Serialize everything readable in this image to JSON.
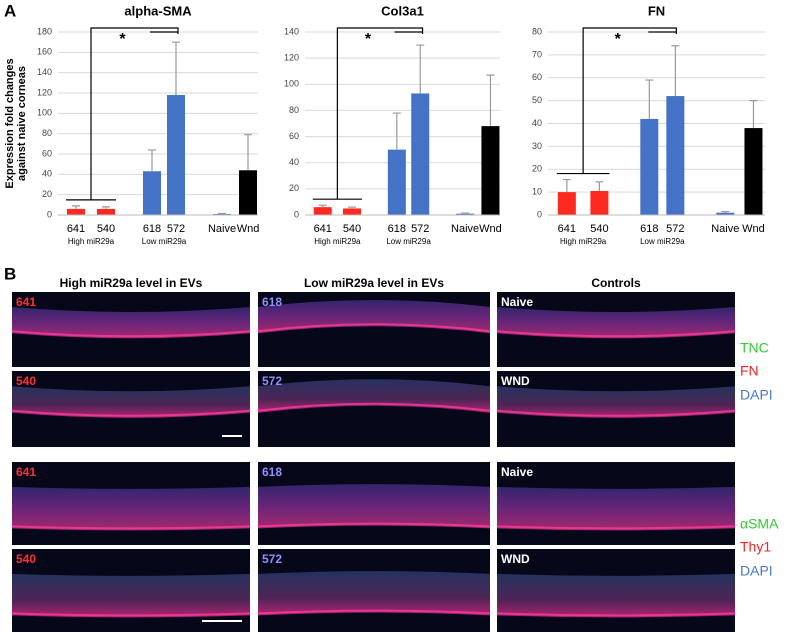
{
  "panel_labels": [
    "A",
    "B"
  ],
  "chart_data": [
    {
      "type": "bar",
      "title": "alpha-SMA",
      "ylabel": [
        "Expression fold changes",
        "against naive corneas"
      ],
      "categories": [
        "641",
        "540",
        "618",
        "572",
        "Naive",
        "Wnd"
      ],
      "values": [
        6,
        6,
        43,
        118,
        1,
        44
      ],
      "errors": [
        3,
        2,
        21,
        52,
        0.5,
        35
      ],
      "colors": [
        "#ff2a1f",
        "#ff2a1f",
        "#4472c4",
        "#4472c4",
        "#4472c4",
        "#000000"
      ],
      "group_labels": [
        "High miR29a",
        "Low miR29a"
      ],
      "annotation": "*",
      "ylim": [
        0,
        180
      ],
      "yticks": [
        0,
        20,
        40,
        60,
        80,
        100,
        120,
        140,
        160,
        180
      ],
      "grid": true
    },
    {
      "type": "bar",
      "title": "Col3a1",
      "categories": [
        "641",
        "540",
        "618",
        "572",
        "Naive",
        "Wnd"
      ],
      "values": [
        6,
        5,
        50,
        93,
        1,
        68
      ],
      "errors": [
        1.5,
        1,
        28,
        37,
        0.5,
        39
      ],
      "colors": [
        "#ff2a1f",
        "#ff2a1f",
        "#4472c4",
        "#4472c4",
        "#4472c4",
        "#000000"
      ],
      "group_labels": [
        "High miR29a",
        "Low miR29a"
      ],
      "annotation": "*",
      "ylim": [
        0,
        140
      ],
      "yticks": [
        0,
        20,
        40,
        60,
        80,
        100,
        120,
        140
      ],
      "grid": true
    },
    {
      "type": "bar",
      "title": "FN",
      "categories": [
        "641",
        "540",
        "618",
        "572",
        "Naive",
        "Wnd"
      ],
      "values": [
        10,
        10.5,
        42,
        52,
        1,
        38
      ],
      "errors": [
        5.5,
        4,
        17,
        22,
        0.5,
        12
      ],
      "colors": [
        "#ff2a1f",
        "#ff2a1f",
        "#4472c4",
        "#4472c4",
        "#4472c4",
        "#000000"
      ],
      "group_labels": [
        "High miR29a",
        "Low miR29a"
      ],
      "annotation": "*",
      "ylim": [
        0,
        80
      ],
      "yticks": [
        0,
        10,
        20,
        30,
        40,
        50,
        60,
        70,
        80
      ],
      "grid": true
    }
  ],
  "panel_b": {
    "columns": [
      "High miR29a level in EVs",
      "Low miR29a level in EVs",
      "Controls"
    ],
    "rows": [
      [
        "641",
        "618",
        "Naive"
      ],
      [
        "540",
        "572",
        "WND"
      ],
      [
        "641",
        "618",
        "Naive"
      ],
      [
        "540",
        "572",
        "WND"
      ]
    ],
    "legends": [
      [
        "TNC",
        "FN",
        "DAPI"
      ],
      [
        "αSMA",
        "Thy1",
        "DAPI"
      ]
    ]
  }
}
